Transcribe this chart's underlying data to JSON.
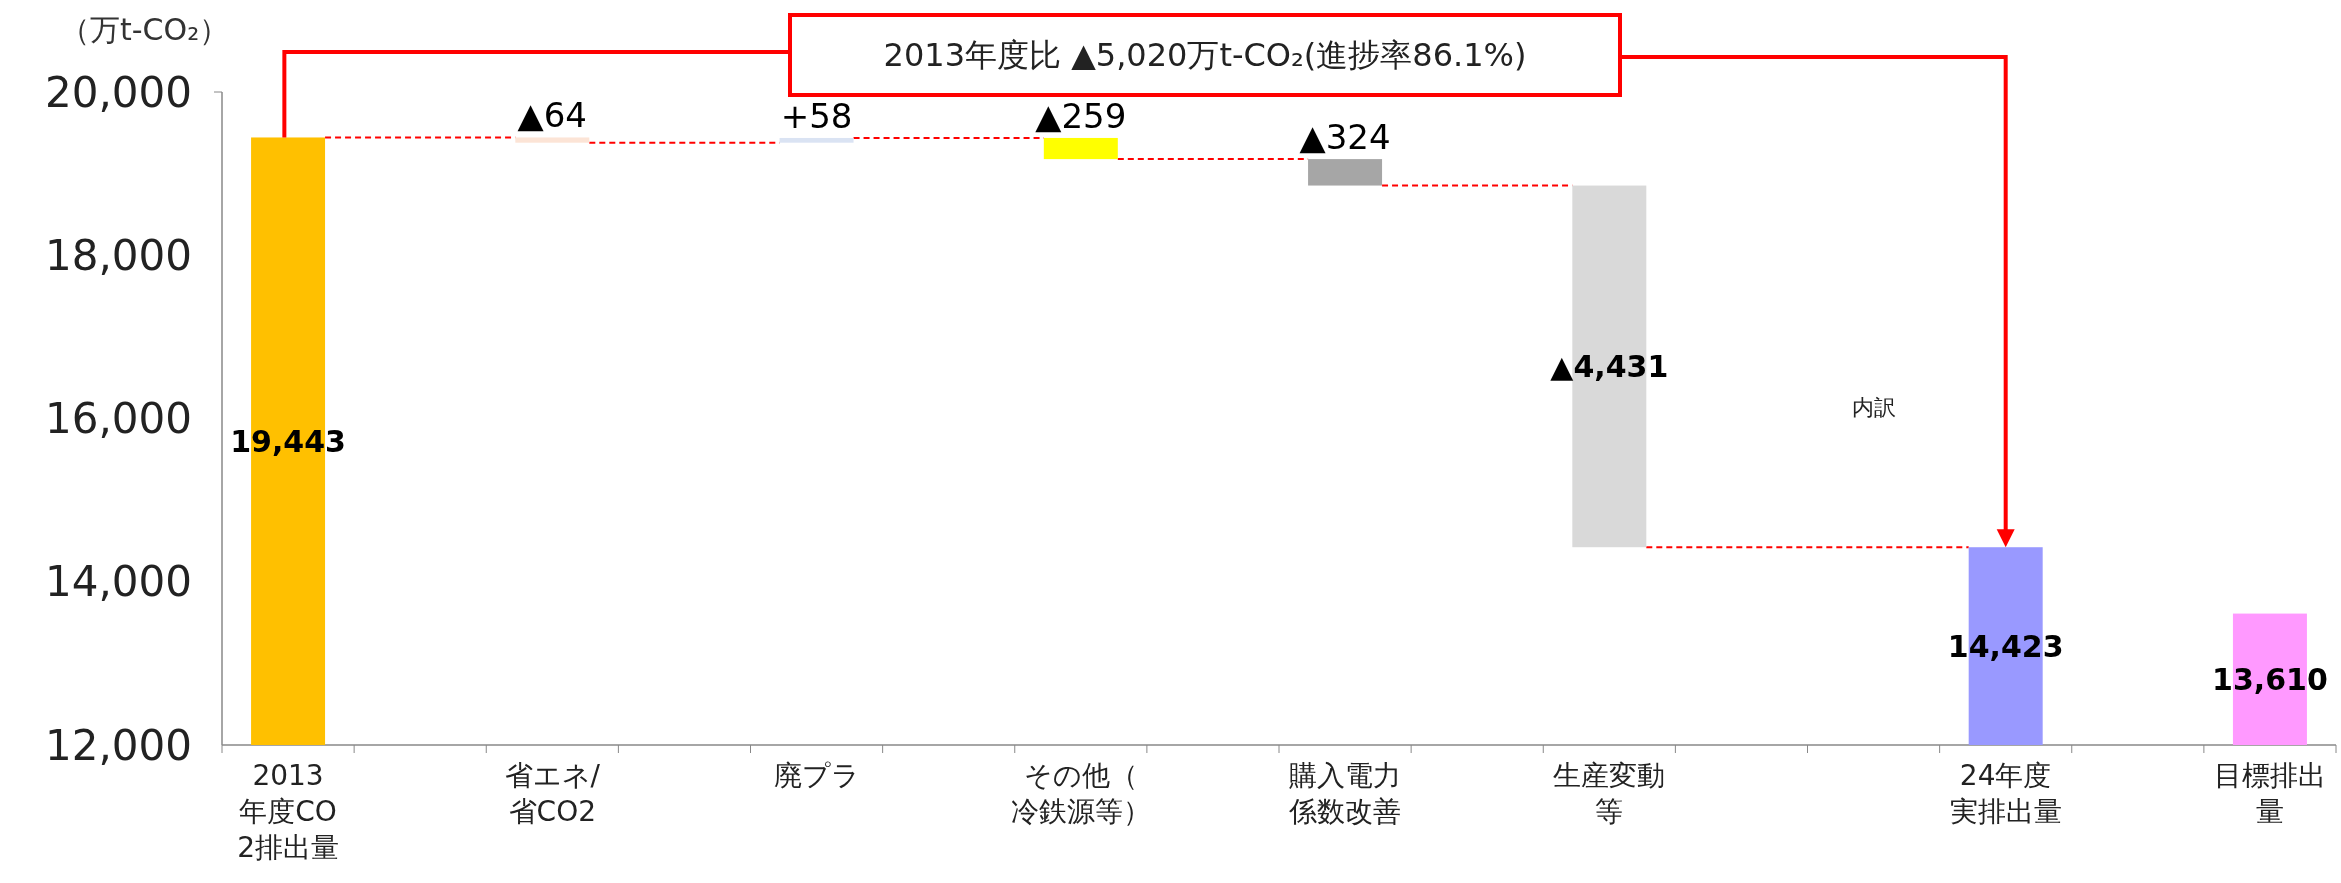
{
  "chart_data": {
    "type": "bar",
    "ylabel": "（万t-CO₂）",
    "categories": [
      "2013年度CO2排出量",
      null,
      "省エネ/省CO2",
      null,
      "廃プラ",
      null,
      "その他（冷鉄源等）",
      null,
      "購入電力係数改善",
      null,
      "生産変動等",
      null,
      null,
      "24年度実排出量",
      null,
      "目標排出量"
    ],
    "values": [
      19443,
      null,
      -64,
      null,
      58,
      null,
      -259,
      null,
      -324,
      null,
      -4431,
      null,
      null,
      14423,
      null,
      13610
    ],
    "base": [
      null,
      null,
      19443,
      null,
      19379,
      null,
      19437,
      null,
      19178,
      null,
      18854,
      null,
      null,
      null,
      null,
      null
    ],
    "colors": [
      "#ffc000",
      null,
      "#fce4d6",
      null,
      "#dae3f3",
      null,
      "#ffff00",
      null,
      "#a6a6a6",
      null,
      "#d9d9d9",
      null,
      null,
      "#9999ff",
      null,
      "#ff99ff"
    ],
    "value_labels": [
      "19,443",
      null,
      "▲64",
      null,
      "+58",
      null,
      "▲259",
      null,
      "▲324",
      null,
      "▲4,431",
      null,
      null,
      "14,423",
      null,
      "13,610"
    ],
    "ylim": [
      12000,
      20000
    ],
    "yticks": [
      {
        "value": 12000,
        "label": "12,000"
      },
      {
        "value": 14000,
        "label": "14,000"
      },
      {
        "value": 16000,
        "label": "16,000"
      },
      {
        "value": 18000,
        "label": "18,000"
      },
      {
        "value": 20000,
        "label": "20,000"
      }
    ],
    "annotations": [
      "2013年度比 ▲5,020万t-CO₂(進捗率86.1%)",
      "内訳"
    ],
    "grid": false
  }
}
